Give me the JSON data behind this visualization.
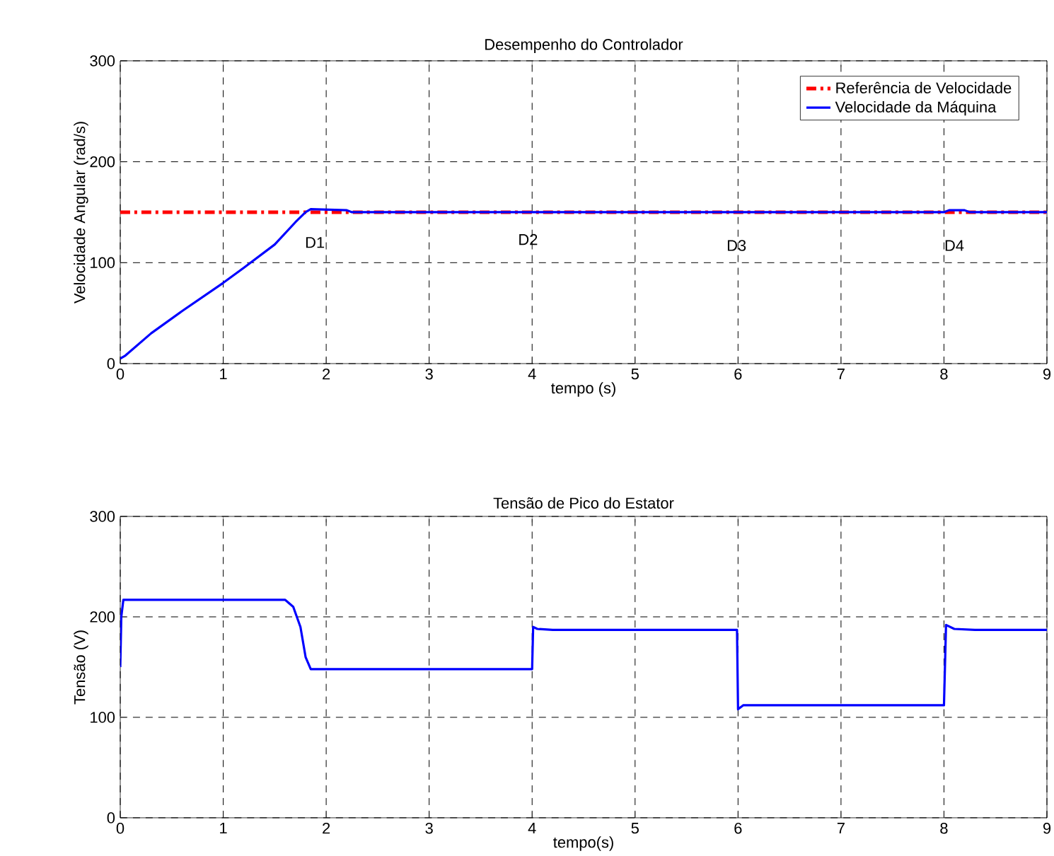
{
  "chart_data": [
    {
      "type": "line",
      "title": "Desempenho do Controlador",
      "xlabel": "tempo (s)",
      "ylabel": "Velocidade Angular (rad/s)",
      "xlim": [
        0,
        9
      ],
      "ylim": [
        0,
        300
      ],
      "xticks": [
        0,
        1,
        2,
        3,
        4,
        5,
        6,
        7,
        8,
        9
      ],
      "yticks": [
        0,
        100,
        200,
        300
      ],
      "grid": true,
      "legend": "top right",
      "series": [
        {
          "name": "Referência de Velocidade",
          "color": "#ff0000",
          "line_style": "dashdot",
          "x": [
            0,
            9
          ],
          "values": [
            150,
            150
          ]
        },
        {
          "name": "Velocidade da Máquina",
          "color": "#0000ff",
          "line_style": "solid",
          "x": [
            0,
            0.05,
            0.3,
            0.6,
            1.0,
            1.2,
            1.5,
            1.7,
            1.8,
            1.85,
            2.2,
            2.25,
            4,
            6,
            8,
            8.05,
            8.2,
            8.25,
            9
          ],
          "values": [
            5,
            8,
            30,
            52,
            80,
            95,
            118,
            140,
            150,
            153,
            152,
            150,
            150,
            150,
            150,
            152,
            152,
            150,
            150
          ]
        }
      ],
      "annotations": [
        "D1",
        "D2",
        "D3",
        "D4"
      ]
    },
    {
      "type": "line",
      "title": "Tensão de Pico do Estator",
      "xlabel": "tempo(s)",
      "ylabel": "Tensão (V)",
      "xlim": [
        0,
        9
      ],
      "ylim": [
        0,
        300
      ],
      "xticks": [
        0,
        1,
        2,
        3,
        4,
        5,
        6,
        7,
        8,
        9
      ],
      "yticks": [
        0,
        100,
        200,
        300
      ],
      "grid": true,
      "series": [
        {
          "color": "#0000ff",
          "line_style": "solid",
          "x": [
            0,
            0.01,
            0.03,
            0.05,
            1.6,
            1.68,
            1.75,
            1.8,
            1.85,
            1.9,
            4.0,
            4.01,
            4.05,
            4.2,
            5.99,
            6.0,
            6.05,
            6.2,
            8.0,
            8.02,
            8.1,
            8.3,
            9
          ],
          "values": [
            150,
            200,
            217,
            217,
            217,
            210,
            190,
            160,
            148,
            148,
            148,
            190,
            188,
            187,
            187,
            108,
            112,
            112,
            112,
            192,
            188,
            187,
            187
          ]
        }
      ]
    }
  ]
}
